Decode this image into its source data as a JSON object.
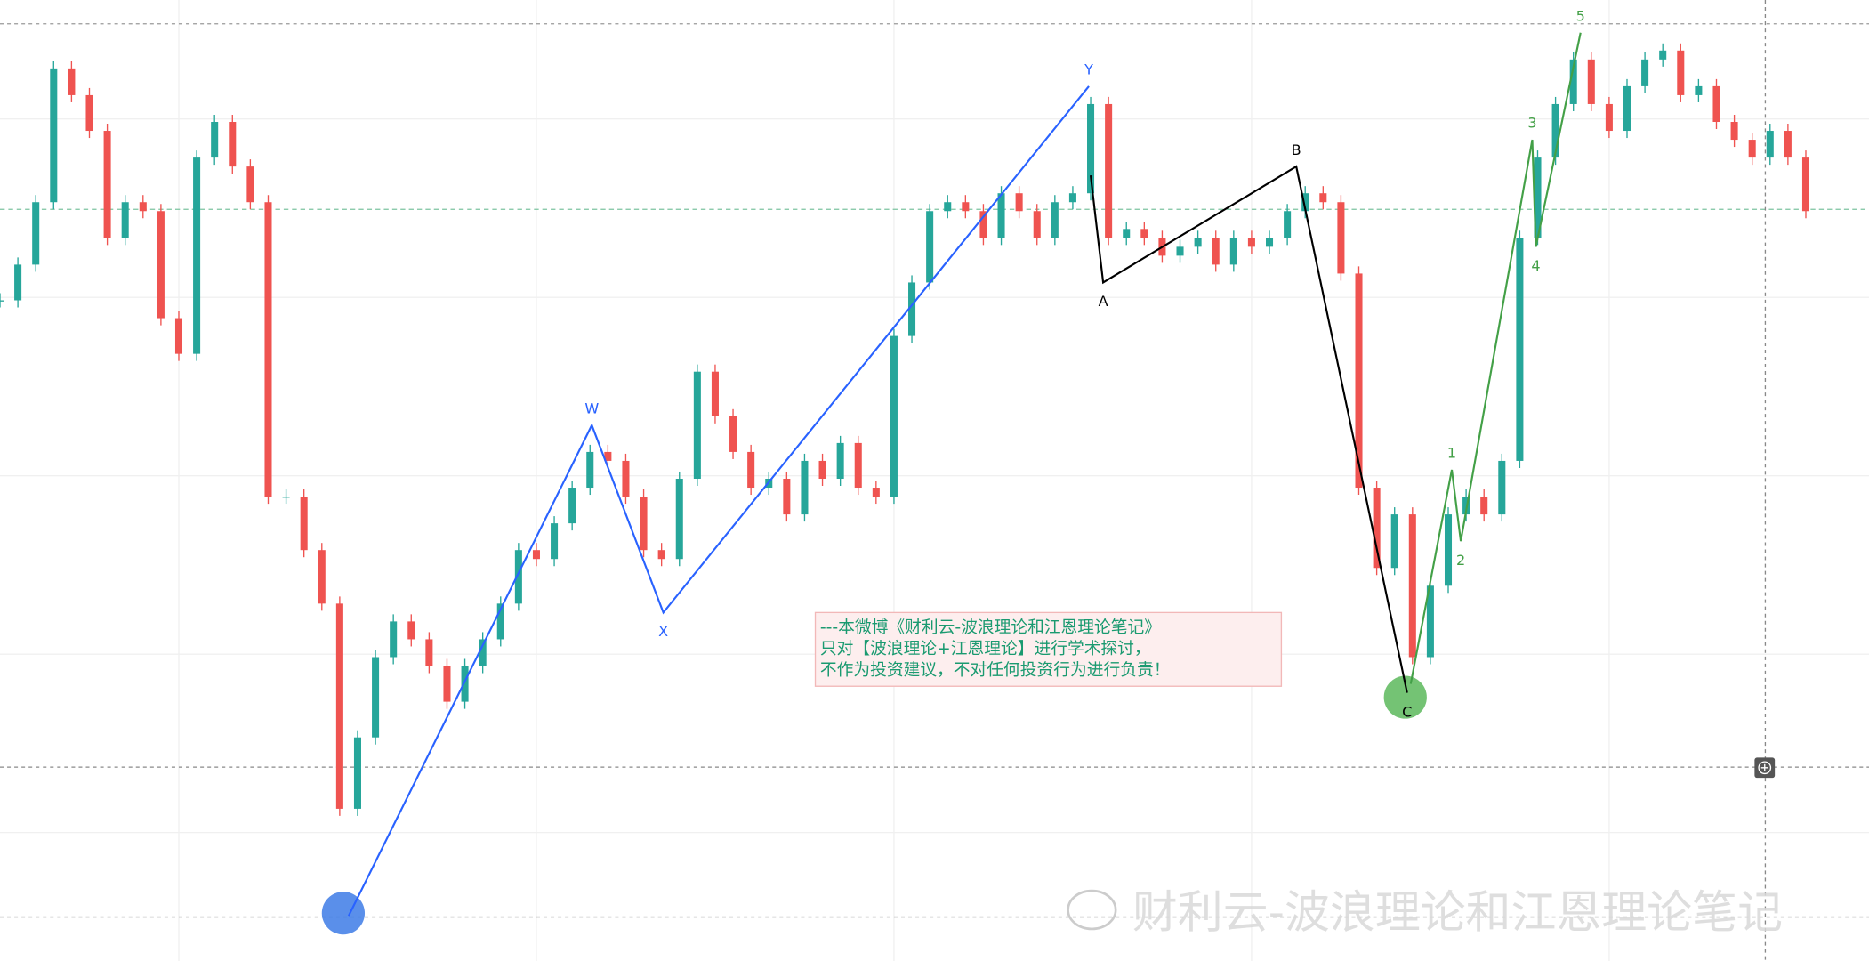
{
  "chart_data": {
    "type": "candlestick",
    "ylim": [
      0,
      100
    ],
    "xlim": [
      0,
      101
    ],
    "up_color": "#26a69a",
    "down_color": "#ef5350",
    "closes": [
      69,
      73,
      80,
      95,
      92,
      88,
      76,
      80,
      79,
      67,
      63,
      85,
      89,
      84,
      80,
      47,
      47,
      41,
      35,
      12,
      20,
      29,
      33,
      31,
      28,
      24,
      28,
      31,
      35,
      41,
      40,
      44,
      48,
      52,
      51,
      47,
      41,
      40,
      49,
      61,
      56,
      52,
      48,
      49,
      45,
      51,
      49,
      53,
      48,
      47,
      65,
      71,
      79,
      80,
      79,
      76,
      81,
      79,
      76,
      80,
      81,
      91,
      76,
      77,
      76,
      74,
      75,
      76,
      73,
      76,
      75,
      76,
      79,
      81,
      80,
      72,
      48,
      39,
      45,
      29,
      37,
      45,
      47,
      45,
      51,
      76,
      85,
      91,
      96,
      91,
      88,
      93,
      96,
      97,
      92,
      93,
      89,
      87,
      85,
      88,
      85,
      79
    ],
    "waves": [
      {
        "color": "#2962ff",
        "points": [
          {
            "label": null,
            "x": 19.5,
            "y": 0
          },
          {
            "label": "W",
            "x": 33.1,
            "y": 55
          },
          {
            "label": "X",
            "x": 37.1,
            "y": 34
          },
          {
            "label": "Y",
            "x": 60.9,
            "y": 93
          }
        ]
      },
      {
        "color": "#000000",
        "points": [
          {
            "label": null,
            "x": 61,
            "y": 83
          },
          {
            "label": "A",
            "x": 61.7,
            "y": 71
          },
          {
            "label": "B",
            "x": 72.5,
            "y": 84
          },
          {
            "label": "C",
            "x": 78.7,
            "y": 25
          }
        ]
      },
      {
        "color": "#43a047",
        "points": [
          {
            "label": null,
            "x": 78.9,
            "y": 26
          },
          {
            "label": "1",
            "x": 81.2,
            "y": 50
          },
          {
            "label": "2",
            "x": 81.7,
            "y": 42
          },
          {
            "label": "3",
            "x": 85.7,
            "y": 87
          },
          {
            "label": "4",
            "x": 85.9,
            "y": 75
          },
          {
            "label": "5",
            "x": 88.4,
            "y": 99
          }
        ]
      }
    ],
    "circles": [
      {
        "x": 19.2,
        "y": 0.3,
        "color": "#3d7be6"
      },
      {
        "x": 78.6,
        "y": 24.5,
        "color": "#5cb85c"
      }
    ],
    "note": [
      "---本微博《财利云-波浪理论和江恩理论笔记》",
      "只对【波浪理论+江恩理论】进行学术探讨，",
      "不作为投资建议，不对任何投资行为进行负责！"
    ],
    "watermark": "财利云-波浪理论和江恩理论笔记"
  }
}
